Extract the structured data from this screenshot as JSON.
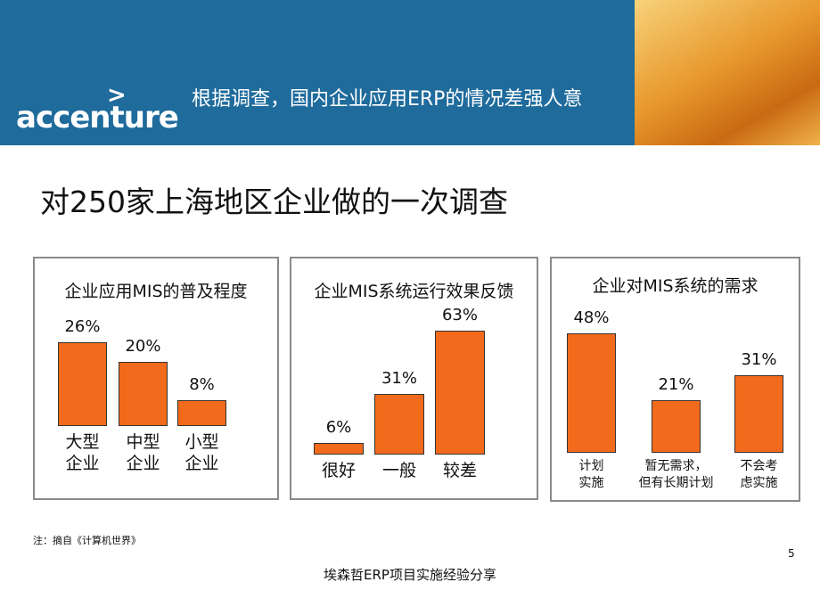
{
  "header": {
    "logo": "accenture",
    "title": "根据调查，国内企业应用ERP的情况差强人意"
  },
  "subtitle": "对250家上海地区企业做的一次调查",
  "chart_data": [
    {
      "type": "bar",
      "title": "企业应用MIS的普及程度",
      "categories": [
        "大型\n企业",
        "中型\n企业",
        "小型\n企业"
      ],
      "values": [
        26,
        20,
        8
      ],
      "value_labels": [
        "26%",
        "20%",
        "8%"
      ],
      "color": "#f26a1b"
    },
    {
      "type": "bar",
      "title": "企业MIS系统运行效果反馈",
      "categories": [
        "很好",
        "一般",
        "较差"
      ],
      "values": [
        6,
        31,
        63
      ],
      "value_labels": [
        "6%",
        "31%",
        "63%"
      ],
      "color": "#f26a1b"
    },
    {
      "type": "bar",
      "title": "企业对MIS系统的需求",
      "categories": [
        "计划\n实施",
        "暂无需求，\n但有长期计划",
        "不会考\n虑实施"
      ],
      "values": [
        48,
        21,
        31
      ],
      "value_labels": [
        "48%",
        "21%",
        "31%"
      ],
      "color": "#f26a1b"
    }
  ],
  "note": "注：摘自《计算机世界》",
  "page_number": "5",
  "footer": "埃森哲ERP项目实施经验分享"
}
